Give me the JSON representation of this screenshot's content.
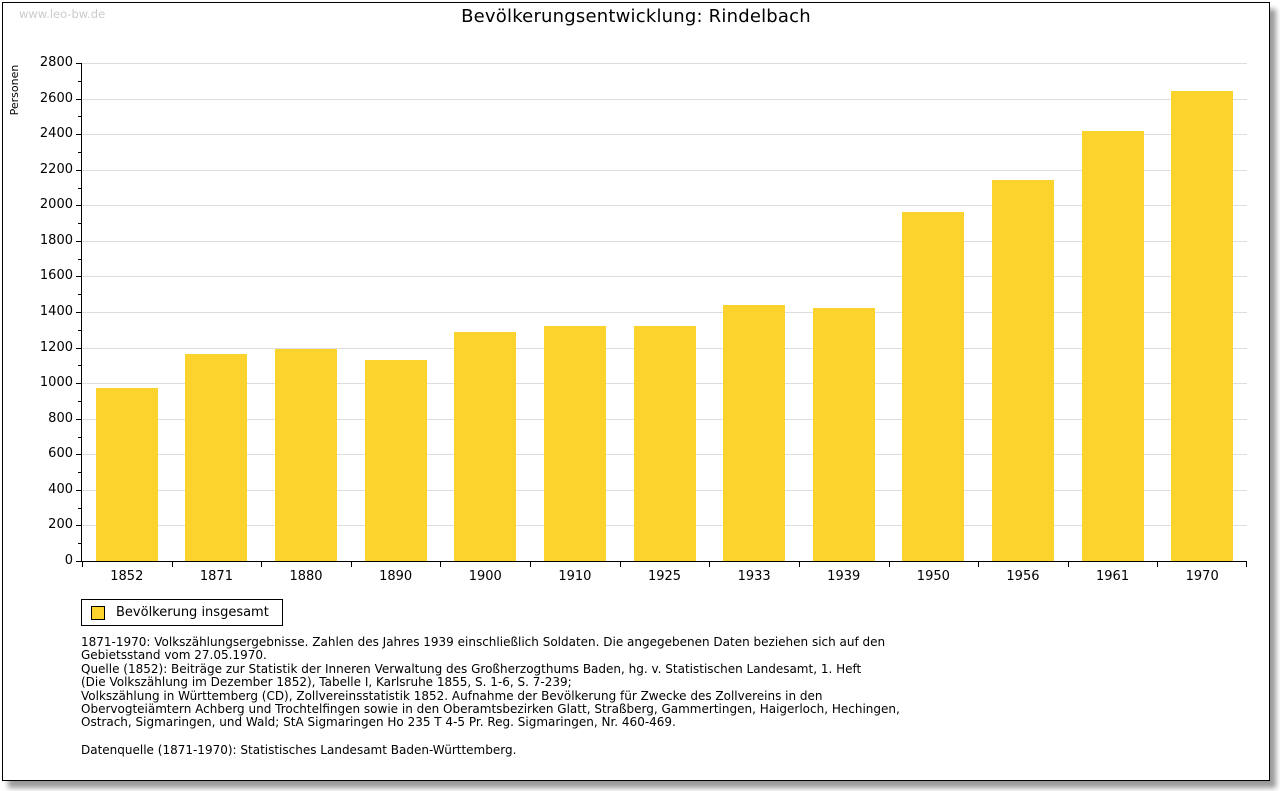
{
  "watermark": "www.leo-bw.de",
  "title": "Bevölkerungsentwicklung: Rindelbach",
  "legend": {
    "label": "Bevölkerung insgesamt"
  },
  "colors": {
    "bar": "#fcd32d",
    "grid": "#dddddd",
    "axis": "#000000",
    "watermark": "#cbcbcb"
  },
  "chart_data": {
    "type": "bar",
    "title": "Bevölkerungsentwicklung: Rindelbach",
    "xlabel": "",
    "ylabel": "Personen",
    "categories": [
      "1852",
      "1871",
      "1880",
      "1890",
      "1900",
      "1910",
      "1925",
      "1933",
      "1939",
      "1950",
      "1956",
      "1961",
      "1970"
    ],
    "series": [
      {
        "name": "Bevölkerung insgesamt",
        "values": [
          975,
          1165,
          1190,
          1130,
          1290,
          1320,
          1320,
          1440,
          1425,
          1965,
          2145,
          2415,
          2640
        ]
      }
    ],
    "ylim": [
      0,
      2800
    ],
    "y_ticks": [
      0,
      200,
      400,
      600,
      800,
      1000,
      1200,
      1400,
      1600,
      1800,
      2000,
      2200,
      2400,
      2600,
      2800
    ],
    "y_minor_step": 100,
    "y_major_step": 200,
    "grid": "horizontal",
    "legend_position": "bottom-left"
  },
  "footnotes": [
    "1871-1970: Volkszählungsergebnisse. Zahlen des Jahres 1939 einschließlich Soldaten. Die angegebenen Daten beziehen sich auf den",
    "Gebietsstand vom 27.05.1970.",
    "Quelle (1852): Beiträge zur Statistik der Inneren Verwaltung des Großherzogthums Baden, hg. v. Statistischen Landesamt, 1. Heft",
    "(Die Volkszählung im Dezember 1852), Tabelle I, Karlsruhe 1855, S. 1-6, S. 7-239;",
    "Volkszählung in Württemberg (CD), Zollvereinsstatistik 1852. Aufnahme der Bevölkerung für Zwecke des Zollvereins in den",
    "Obervogteiämtern Achberg und Trochtelfingen sowie in den Oberamtsbezirken Glatt, Straßberg, Gammertingen, Haigerloch, Hechingen,",
    "Ostrach, Sigmaringen, und Wald; StA Sigmaringen Ho 235 T 4-5 Pr. Reg. Sigmaringen, Nr. 460-469."
  ],
  "datasource": "Datenquelle (1871-1970): Statistisches Landesamt Baden-Württemberg."
}
